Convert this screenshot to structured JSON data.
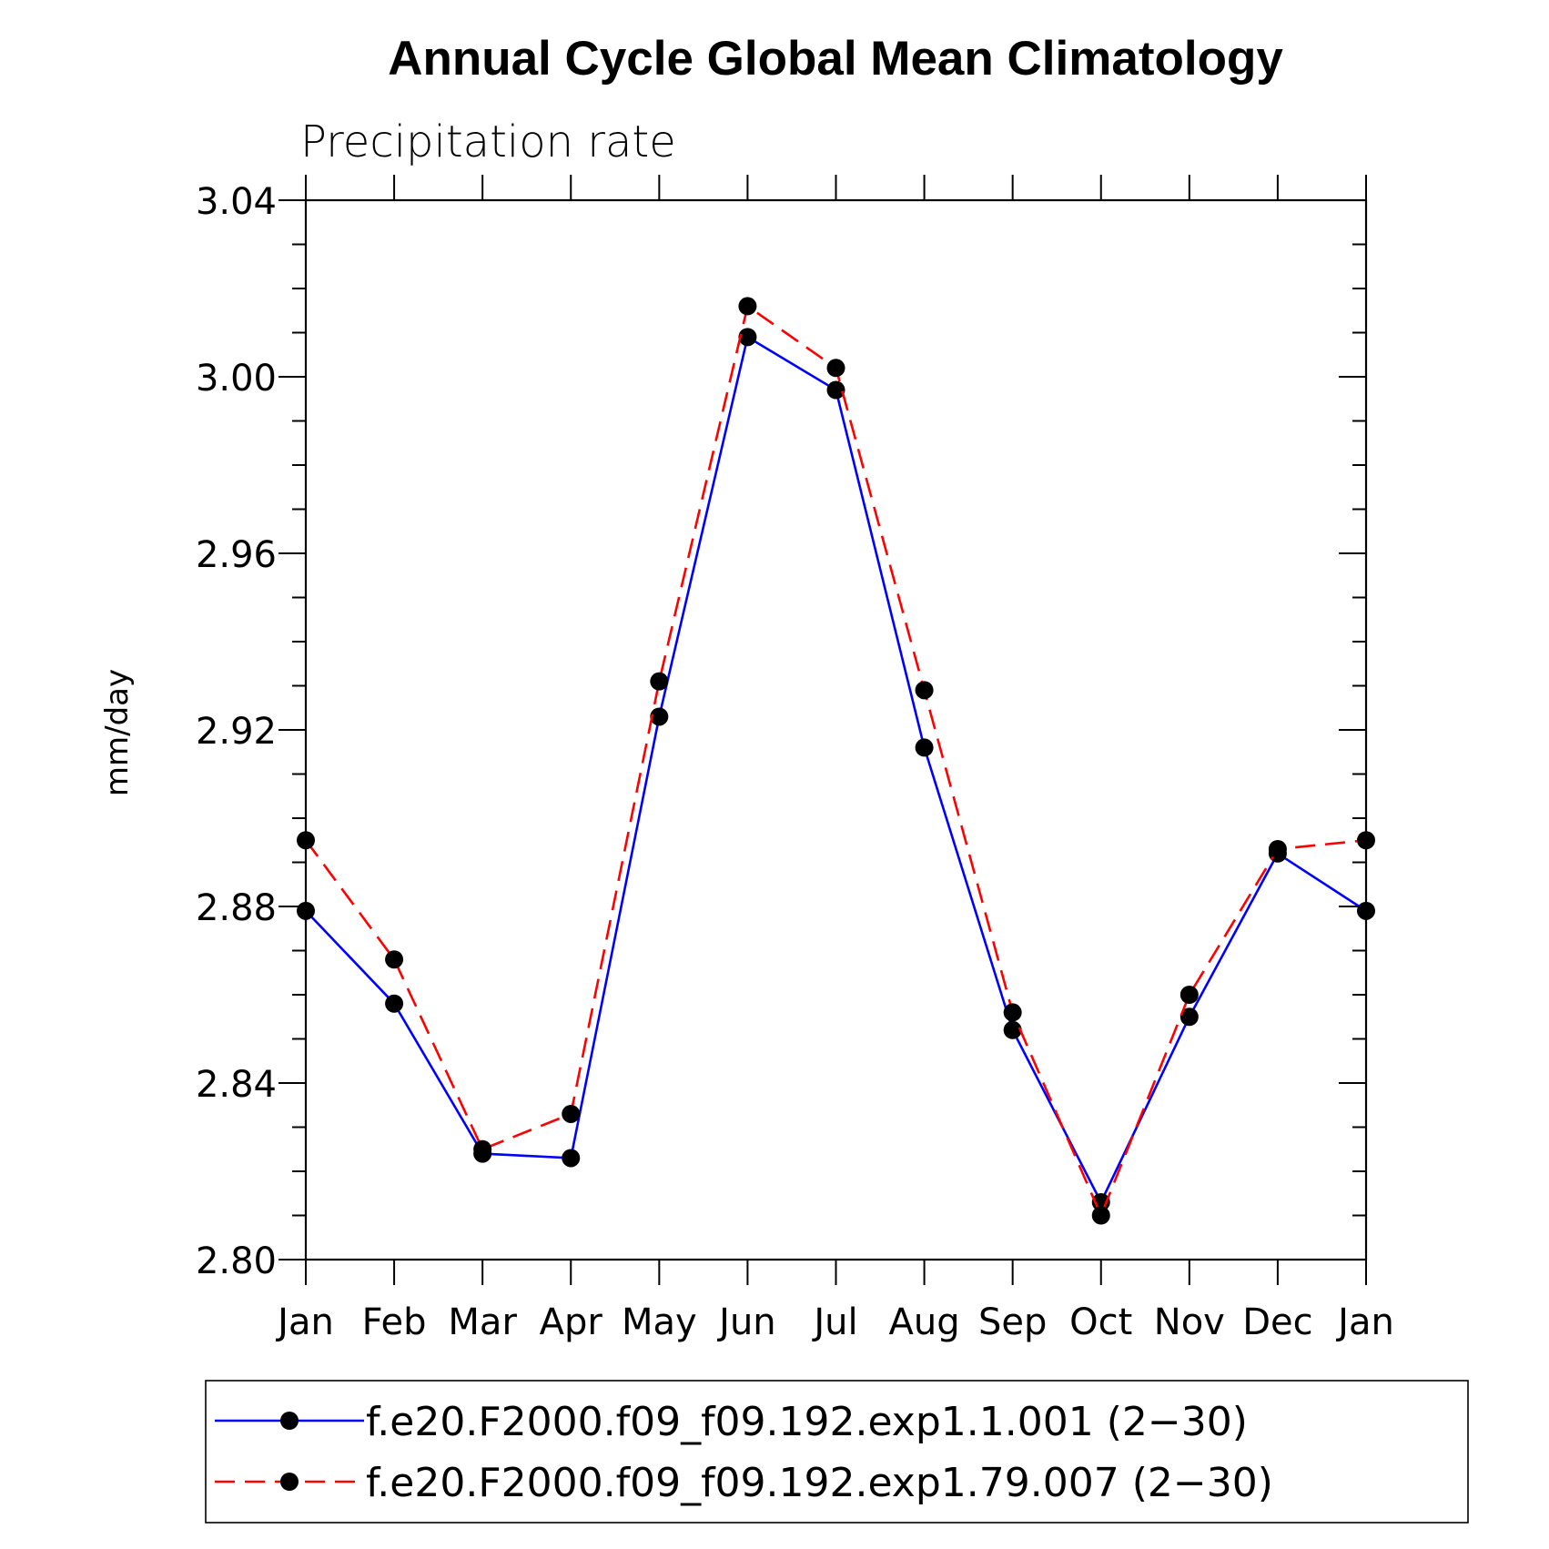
{
  "chart_data": {
    "type": "line",
    "title": "Annual Cycle Global Mean Climatology",
    "subtitle": "Precipitation rate",
    "ylabel": "mm/day",
    "xlabel": "",
    "categories": [
      "Jan",
      "Feb",
      "Mar",
      "Apr",
      "May",
      "Jun",
      "Jul",
      "Aug",
      "Sep",
      "Oct",
      "Nov",
      "Dec",
      "Jan"
    ],
    "ylim": [
      2.8,
      3.04
    ],
    "yticks": [
      "2.80",
      "2.84",
      "2.88",
      "2.92",
      "2.96",
      "3.00",
      "3.04"
    ],
    "grid": false,
    "legend_position": "bottom",
    "series": [
      {
        "name": "f.e20.F2000.f09_f09.192.exp1.1.001 (2−30)",
        "color": "#0000ff",
        "style": "solid",
        "marker": "filled-circle",
        "values": [
          2.879,
          2.858,
          2.824,
          2.823,
          2.923,
          3.009,
          2.997,
          2.916,
          2.852,
          2.813,
          2.855,
          2.892,
          2.879
        ]
      },
      {
        "name": "f.e20.F2000.f09_f09.192.exp1.79.007 (2−30)",
        "color": "#ff0000",
        "style": "dashed",
        "marker": "filled-circle",
        "values": [
          2.895,
          2.868,
          2.825,
          2.833,
          2.931,
          3.016,
          3.002,
          2.929,
          2.856,
          2.81,
          2.86,
          2.893,
          2.895
        ]
      }
    ]
  }
}
